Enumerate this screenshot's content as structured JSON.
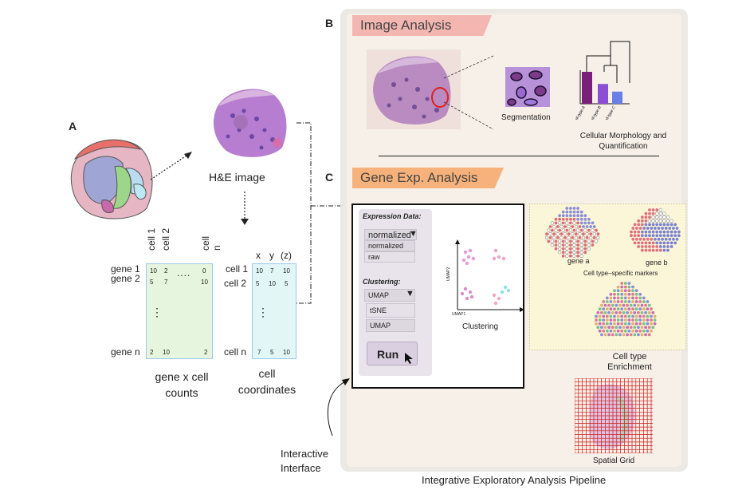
{
  "panel_a": {
    "letter": "A",
    "he_label": "H&E image",
    "matrix": {
      "col_headers": [
        "cell 1",
        "cell 2",
        "cell n"
      ],
      "col_dots": "....",
      "row_headers": [
        "gene 1",
        "gene 2",
        "gene n"
      ],
      "row_dots": "⋮",
      "rows": [
        [
          "10",
          "2",
          "0"
        ],
        [
          "5",
          "7",
          "10"
        ],
        [
          "2",
          "10",
          "2"
        ]
      ],
      "caption": [
        "gene x cell",
        "counts"
      ]
    },
    "coords": {
      "col_headers": [
        "x",
        "y",
        "(z)"
      ],
      "row_headers": [
        "cell 1",
        "cell 2",
        "cell n"
      ],
      "row_dots": "⋮",
      "rows": [
        [
          "10",
          "7",
          "10"
        ],
        [
          "5",
          "10",
          "5"
        ],
        [
          "7",
          "5",
          "10"
        ]
      ],
      "caption": [
        "cell",
        "coordinates"
      ]
    }
  },
  "panel_b": {
    "letter": "B",
    "banner": "Image Analysis",
    "segmentation_label": "Segmentation",
    "morphology_label": [
      "Cellular Morphology and",
      "Quantification"
    ],
    "bar_labels": [
      "cell-type A",
      "cell-type B",
      "cell-type C"
    ],
    "bar_values": [
      1.0,
      0.62,
      0.38
    ],
    "bar_colors": [
      "#7a1f7a",
      "#8a4fd6",
      "#6a7ee8"
    ]
  },
  "panel_c": {
    "letter": "C",
    "banner": "Gene Exp. Analysis",
    "gui": {
      "expression_title": "Expression Data:",
      "expression_selected": "normalized",
      "expression_options": [
        "normalized",
        "raw"
      ],
      "clustering_title": "Clustering:",
      "clustering_selected": "UMAP",
      "clustering_options": [
        "tSNE",
        "UMAP"
      ],
      "run_label": "Run"
    },
    "scatter": {
      "xlabel": "UMAP1",
      "ylabel": "UMAP2",
      "caption": "Clustering"
    },
    "markers_caption": "Cell type–specific markers",
    "gene_a": "gene a",
    "gene_b": "gene b",
    "enrichment_caption": [
      "Cell type",
      "Enrichment"
    ],
    "grid_caption": "Spatial Grid"
  },
  "interactive_label": [
    "Interactive",
    "Interface"
  ],
  "pipeline_caption": "Integrative Exploratory Analysis Pipeline"
}
